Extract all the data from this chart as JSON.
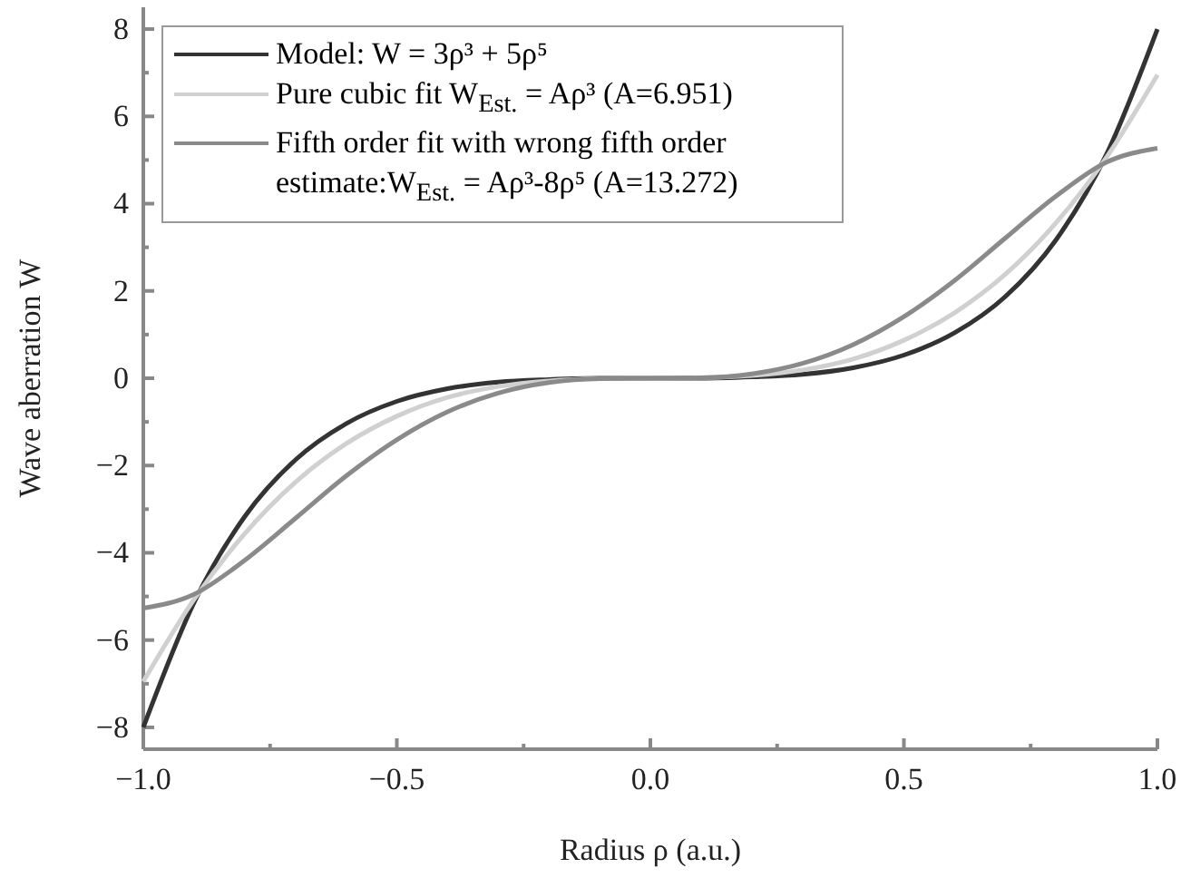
{
  "chart_data": {
    "type": "line",
    "xlabel": "Radius ρ (a.u.)",
    "ylabel": "Wave aberration W",
    "x": [
      -1,
      -0.9,
      -0.8,
      -0.7,
      -0.6,
      -0.5,
      -0.4,
      -0.3,
      -0.2,
      -0.1,
      0,
      0.1,
      0.2,
      0.3,
      0.4,
      0.5,
      0.6,
      0.7,
      0.8,
      0.9,
      1
    ],
    "series": [
      {
        "name": "Model: W = 3ρ³ + 5ρ⁵",
        "color": "#333333",
        "values": [
          -8,
          -5.14,
          -3.17,
          -1.87,
          -1.04,
          -0.53,
          -0.24,
          -0.09,
          -0.03,
          0,
          0,
          0,
          0.03,
          0.09,
          0.24,
          0.53,
          1.04,
          1.87,
          3.17,
          5.14,
          8
        ]
      },
      {
        "name": "Pure cubic fit W$_{Est.}$ = Aρ³ (A=6.951)",
        "color": "#d0d0d0",
        "values": [
          -6.95,
          -5.07,
          -3.56,
          -2.38,
          -1.5,
          -0.87,
          -0.44,
          -0.19,
          -0.06,
          -0.01,
          0,
          0.01,
          0.06,
          0.19,
          0.44,
          0.87,
          1.5,
          2.38,
          3.56,
          5.07,
          6.95
        ]
      },
      {
        "name": "Fifth order fit with wrong fifth order estimate:W$_{Est.}$ = Aρ³-8ρ⁵ (A=13.272)",
        "color": "#8a8a8a",
        "values": [
          -5.27,
          -4.95,
          -4.17,
          -3.21,
          -2.24,
          -1.41,
          -0.77,
          -0.34,
          -0.1,
          -0.01,
          0,
          0.01,
          0.1,
          0.34,
          0.77,
          1.41,
          2.24,
          3.21,
          4.17,
          4.95,
          5.27
        ]
      }
    ],
    "xlim": [
      -1,
      1
    ],
    "ylim": [
      -8.5,
      8.5
    ],
    "xticks": [
      {
        "value": -1,
        "label": "−1.0"
      },
      {
        "value": -0.75,
        "label": null
      },
      {
        "value": -0.5,
        "label": "−0.5"
      },
      {
        "value": -0.25,
        "label": null
      },
      {
        "value": 0,
        "label": "0.0"
      },
      {
        "value": 0.25,
        "label": null
      },
      {
        "value": 0.5,
        "label": "0.5"
      },
      {
        "value": 0.75,
        "label": null
      },
      {
        "value": 1,
        "label": "1.0"
      }
    ],
    "yticks": [
      {
        "value": -8,
        "label": "−8"
      },
      {
        "value": -7,
        "label": null
      },
      {
        "value": -6,
        "label": "−6"
      },
      {
        "value": -5,
        "label": null
      },
      {
        "value": -4,
        "label": "−4"
      },
      {
        "value": -3,
        "label": null
      },
      {
        "value": -2,
        "label": "−2"
      },
      {
        "value": -1,
        "label": null
      },
      0,
      {
        "value": 1,
        "label": null
      },
      2,
      {
        "value": 3,
        "label": null
      },
      4,
      {
        "value": 5,
        "label": null
      },
      6,
      {
        "value": 7,
        "label": null
      },
      8
    ],
    "legend": "top left",
    "grid": false,
    "marker": "none",
    "line_style": "solid"
  }
}
